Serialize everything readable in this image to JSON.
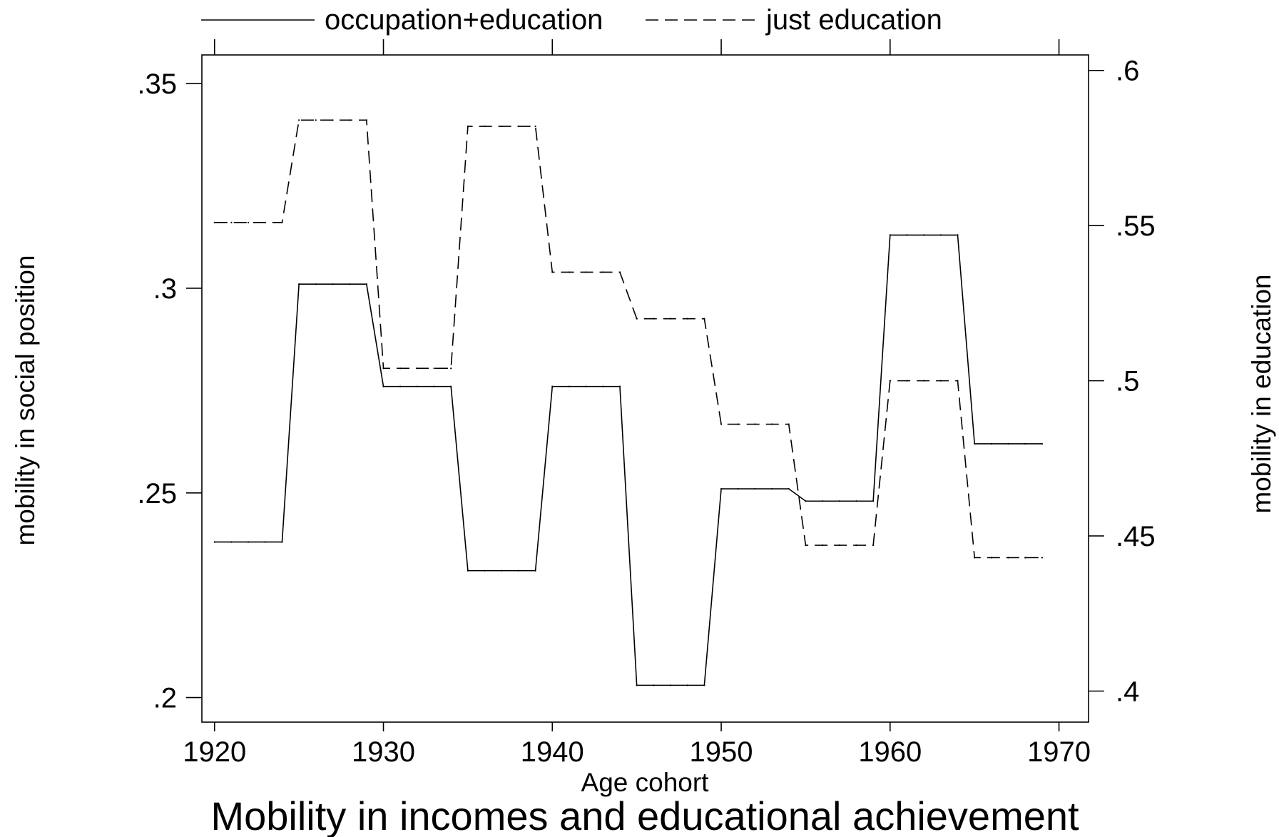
{
  "chart_data": {
    "type": "line",
    "title": "Mobility in incomes and educational achievement",
    "xlabel": "Age cohort",
    "ylabel_left": "mobility in social position",
    "ylabel_right": "mobility in education",
    "xlim": [
      1919.25,
      1971.75
    ],
    "ylim_left": [
      0.194,
      0.357
    ],
    "ylim_right": [
      0.39,
      0.605
    ],
    "x_ticks": [
      1920,
      1930,
      1940,
      1950,
      1960,
      1970
    ],
    "x_tick_labels": [
      "1920",
      "1930",
      "1940",
      "1950",
      "1960",
      "1970"
    ],
    "y_left_ticks": [
      0.2,
      0.25,
      0.3,
      0.35
    ],
    "y_left_tick_labels": [
      ".2",
      ".25",
      ".3",
      ".35"
    ],
    "y_right_ticks": [
      0.4,
      0.45,
      0.5,
      0.55,
      0.6
    ],
    "y_right_tick_labels": [
      ".4",
      ".45",
      ".5",
      ".55",
      ".6"
    ],
    "legend_position": "top",
    "grid": false,
    "series": [
      {
        "name": "occupation+education",
        "axis": "left",
        "style": "solid",
        "color": "#000000",
        "x": [
          1920,
          1921,
          1922,
          1923,
          1924,
          1925,
          1926,
          1927,
          1928,
          1929,
          1930,
          1931,
          1932,
          1933,
          1934,
          1935,
          1936,
          1937,
          1938,
          1939,
          1940,
          1941,
          1942,
          1943,
          1944,
          1945,
          1946,
          1947,
          1948,
          1949,
          1950,
          1951,
          1952,
          1953,
          1954,
          1955,
          1956,
          1957,
          1958,
          1959,
          1960,
          1961,
          1962,
          1963,
          1964,
          1965,
          1966,
          1967,
          1968,
          1969
        ],
        "values": [
          0.238,
          0.238,
          0.238,
          0.238,
          0.238,
          0.301,
          0.301,
          0.301,
          0.301,
          0.301,
          0.276,
          0.276,
          0.276,
          0.276,
          0.276,
          0.231,
          0.231,
          0.231,
          0.231,
          0.231,
          0.276,
          0.276,
          0.276,
          0.276,
          0.276,
          0.203,
          0.203,
          0.203,
          0.203,
          0.203,
          0.251,
          0.251,
          0.251,
          0.251,
          0.251,
          0.248,
          0.248,
          0.248,
          0.248,
          0.248,
          0.313,
          0.313,
          0.313,
          0.313,
          0.313,
          0.262,
          0.262,
          0.262,
          0.262,
          0.262
        ]
      },
      {
        "name": "just education",
        "axis": "right",
        "style": "dashed",
        "color": "#000000",
        "x": [
          1920,
          1921,
          1922,
          1923,
          1924,
          1925,
          1926,
          1927,
          1928,
          1929,
          1930,
          1931,
          1932,
          1933,
          1934,
          1935,
          1936,
          1937,
          1938,
          1939,
          1940,
          1941,
          1942,
          1943,
          1944,
          1945,
          1946,
          1947,
          1948,
          1949,
          1950,
          1951,
          1952,
          1953,
          1954,
          1955,
          1956,
          1957,
          1958,
          1959,
          1960,
          1961,
          1962,
          1963,
          1964,
          1965,
          1966,
          1967,
          1968,
          1969
        ],
        "values": [
          0.551,
          0.551,
          0.551,
          0.551,
          0.551,
          0.584,
          0.584,
          0.584,
          0.584,
          0.584,
          0.504,
          0.504,
          0.504,
          0.504,
          0.504,
          0.582,
          0.582,
          0.582,
          0.582,
          0.582,
          0.535,
          0.535,
          0.535,
          0.535,
          0.535,
          0.52,
          0.52,
          0.52,
          0.52,
          0.52,
          0.486,
          0.486,
          0.486,
          0.486,
          0.486,
          0.447,
          0.447,
          0.447,
          0.447,
          0.447,
          0.5,
          0.5,
          0.5,
          0.5,
          0.5,
          0.443,
          0.443,
          0.443,
          0.443,
          0.443
        ]
      }
    ]
  }
}
